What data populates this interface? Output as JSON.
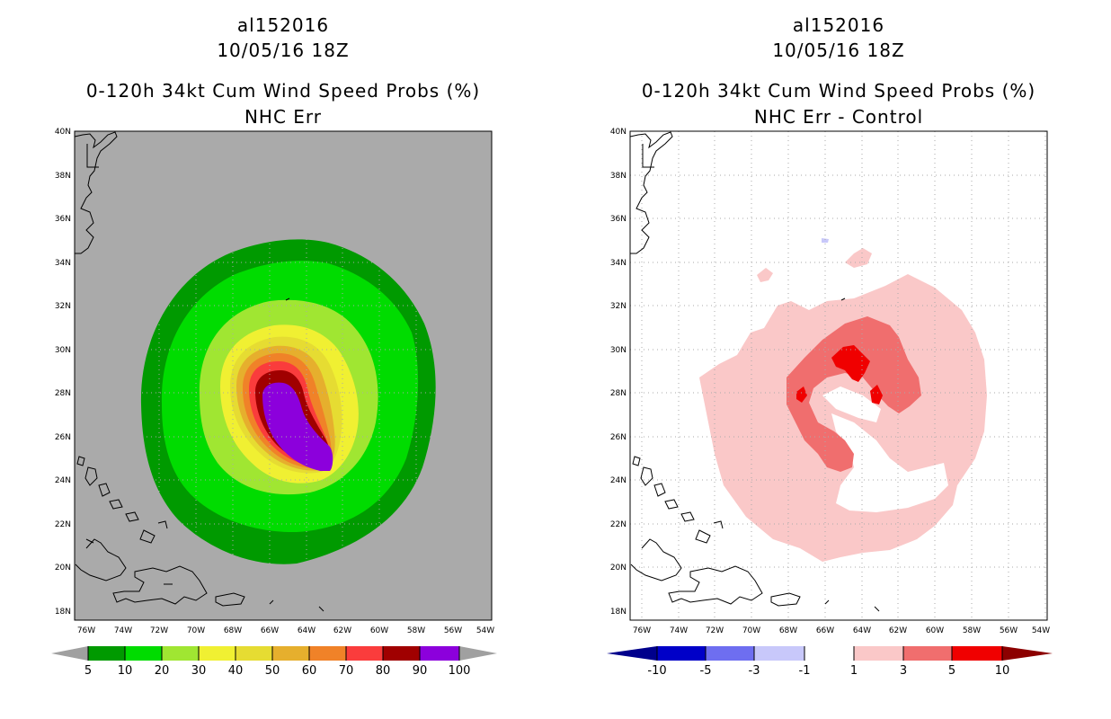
{
  "left": {
    "storm_id": "al152016",
    "datetime": "10/05/16 18Z",
    "product": "0-120h 34kt Cum Wind Speed Probs (%)",
    "subtitle": "NHC Err",
    "colorbar": {
      "labels": [
        "5",
        "10",
        "20",
        "30",
        "40",
        "50",
        "60",
        "70",
        "80",
        "90",
        "100"
      ],
      "colors": [
        "#009a00",
        "#00dc00",
        "#a0e632",
        "#f0f032",
        "#e6dc32",
        "#e6af2d",
        "#f08228",
        "#fa3c3c",
        "#a00000",
        "#8c00dc"
      ],
      "under_color": "#a0a0a0",
      "over_color": "#a0a0a0"
    }
  },
  "right": {
    "storm_id": "al152016",
    "datetime": "10/05/16 18Z",
    "product": "0-120h 34kt Cum Wind Speed Probs (%)",
    "subtitle": "NHC Err - Control",
    "colorbar": {
      "labels": [
        "-10",
        "-5",
        "-3",
        "-1",
        "1",
        "3",
        "5",
        "10"
      ],
      "colors": [
        "#0000c8",
        "#6e6ef0",
        "#c8c8fa",
        "#ffffff",
        "#fac8c8",
        "#f06e6e",
        "#f00000"
      ],
      "under_color": "#00008c",
      "over_color": "#8c0000"
    }
  },
  "axes": {
    "lat_labels": [
      "40N",
      "38N",
      "36N",
      "34N",
      "32N",
      "30N",
      "28N",
      "26N",
      "24N",
      "22N",
      "20N",
      "18N"
    ],
    "lon_labels": [
      "76W",
      "74W",
      "72W",
      "70W",
      "68W",
      "66W",
      "64W",
      "62W",
      "60W",
      "58W",
      "56W",
      "54W"
    ]
  },
  "colors": {
    "ocean_left": "#aaaaaa",
    "ocean_right": "#ffffff",
    "grid": "#aaaaaa"
  }
}
